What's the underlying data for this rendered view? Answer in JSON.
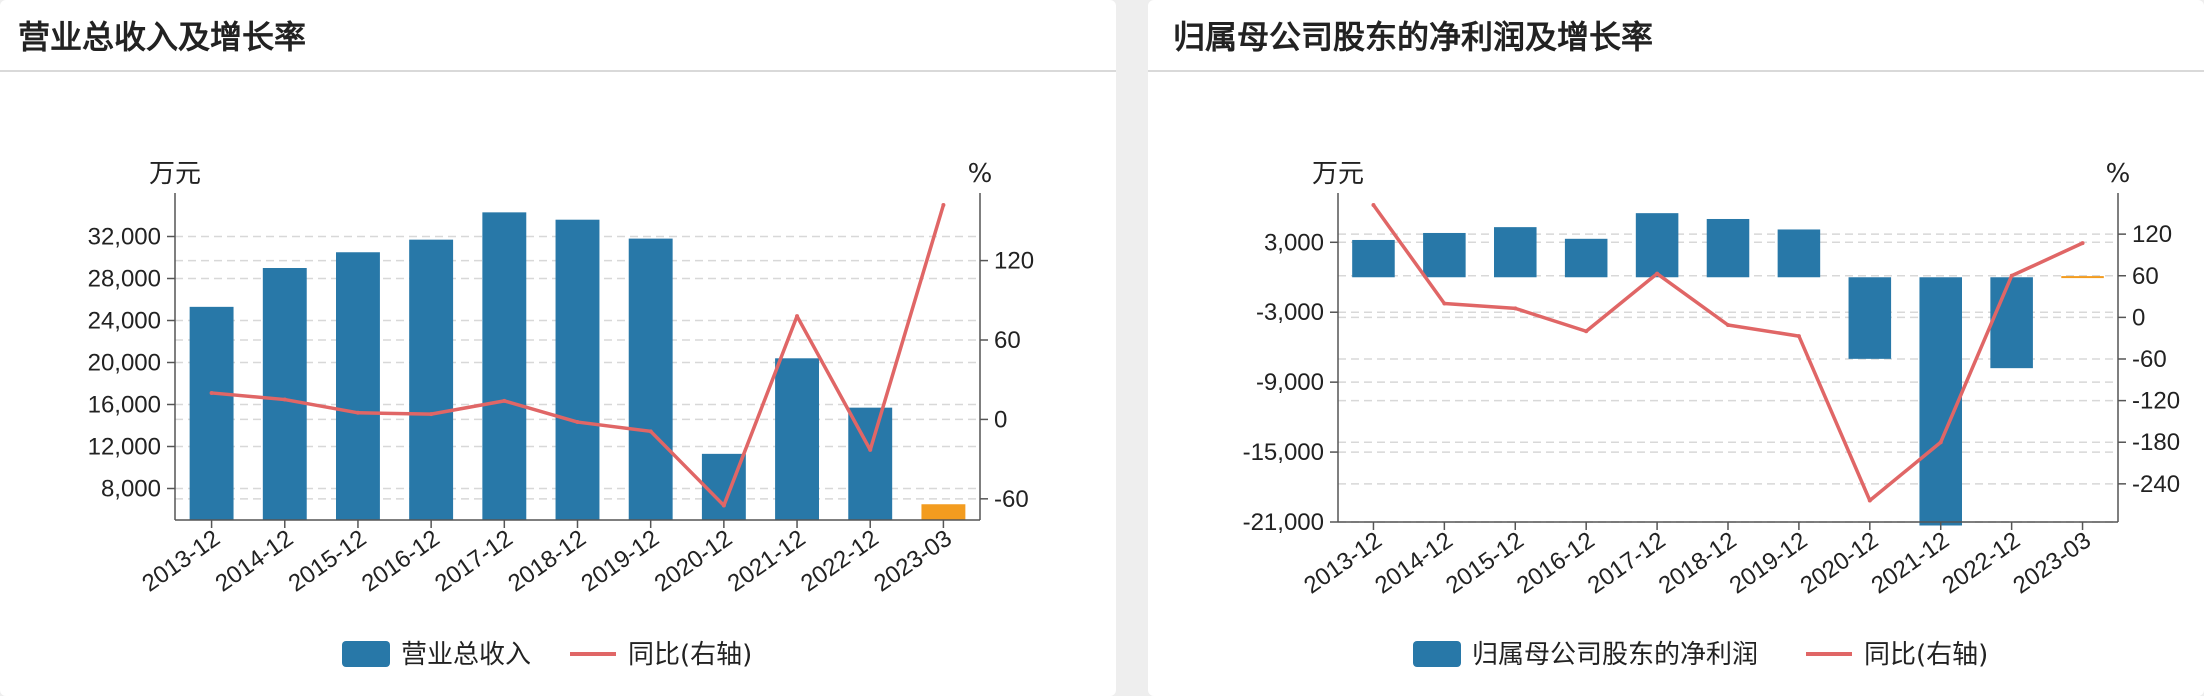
{
  "colors": {
    "bar": "#2878a8",
    "bar_highlight": "#f39c1f",
    "line": "#e06666",
    "axis": "#555555",
    "grid": "#d8d8d8"
  },
  "panels": [
    {
      "title": "营业总收入及增长率",
      "left_unit": "万元",
      "right_unit": "%",
      "legend": {
        "bar_label": "营业总收入",
        "line_label": "同比(右轴)"
      }
    },
    {
      "title": "归属母公司股东的净利润及增长率",
      "left_unit": "万元",
      "right_unit": "%",
      "legend": {
        "bar_label": "归属母公司股东的净利润",
        "line_label": "同比(右轴)"
      }
    }
  ],
  "chart_data": [
    {
      "type": "bar",
      "title": "营业总收入及增长率",
      "categories": [
        "2013-12",
        "2014-12",
        "2015-12",
        "2016-12",
        "2017-12",
        "2018-12",
        "2019-12",
        "2020-12",
        "2021-12",
        "2022-12",
        "2023-03"
      ],
      "series": [
        {
          "name": "营业总收入",
          "axis": "left",
          "type": "bar",
          "values": [
            25300,
            29000,
            30500,
            31700,
            34300,
            33600,
            31800,
            11300,
            20400,
            15700,
            6500
          ]
        },
        {
          "name": "同比(右轴)",
          "axis": "right",
          "type": "line",
          "values": [
            20,
            15,
            5,
            4,
            14,
            -2,
            -9,
            -65,
            78,
            -23,
            162
          ]
        }
      ],
      "ylabel": "万元",
      "y2label": "%",
      "ylim": [
        5000,
        35000
      ],
      "y2lim": [
        -76,
        162
      ],
      "yticks": [
        8000,
        12000,
        16000,
        20000,
        24000,
        28000,
        32000
      ],
      "ytick_labels": [
        "8,000",
        "12,000",
        "16,000",
        "20,000",
        "24,000",
        "28,000",
        "32,000"
      ],
      "y2ticks": [
        -60,
        0,
        60,
        120
      ],
      "y2tick_labels": [
        "-60",
        "0",
        "60",
        "120"
      ],
      "highlight_last_bar": true,
      "grid": true,
      "legend_position": "bottom"
    },
    {
      "type": "bar",
      "title": "归属母公司股东的净利润及增长率",
      "categories": [
        "2013-12",
        "2014-12",
        "2015-12",
        "2016-12",
        "2017-12",
        "2018-12",
        "2019-12",
        "2020-12",
        "2021-12",
        "2022-12",
        "2023-03"
      ],
      "series": [
        {
          "name": "归属母公司股东的净利润",
          "axis": "left",
          "type": "bar",
          "values": [
            3200,
            3800,
            4300,
            3300,
            5500,
            5000,
            4100,
            -7000,
            -21300,
            -7800,
            100
          ]
        },
        {
          "name": "同比(右轴)",
          "axis": "right",
          "type": "line",
          "values": [
            162,
            20,
            13,
            -20,
            63,
            -11,
            -27,
            -264,
            -180,
            60,
            107
          ]
        }
      ],
      "ylabel": "万元",
      "y2label": "%",
      "ylim": [
        -21000,
        6200
      ],
      "y2lim": [
        -295,
        162
      ],
      "yticks": [
        -21000,
        -15000,
        -9000,
        -3000,
        3000
      ],
      "ytick_labels": [
        "-21,000",
        "-15,000",
        "-9,000",
        "-3,000",
        "3,000"
      ],
      "y2ticks": [
        -240,
        -180,
        -120,
        -60,
        0,
        60,
        120
      ],
      "y2tick_labels": [
        "-240",
        "-180",
        "-120",
        "-60",
        "0",
        "60",
        "120"
      ],
      "highlight_last_bar": true,
      "grid": true,
      "legend_position": "bottom"
    }
  ]
}
